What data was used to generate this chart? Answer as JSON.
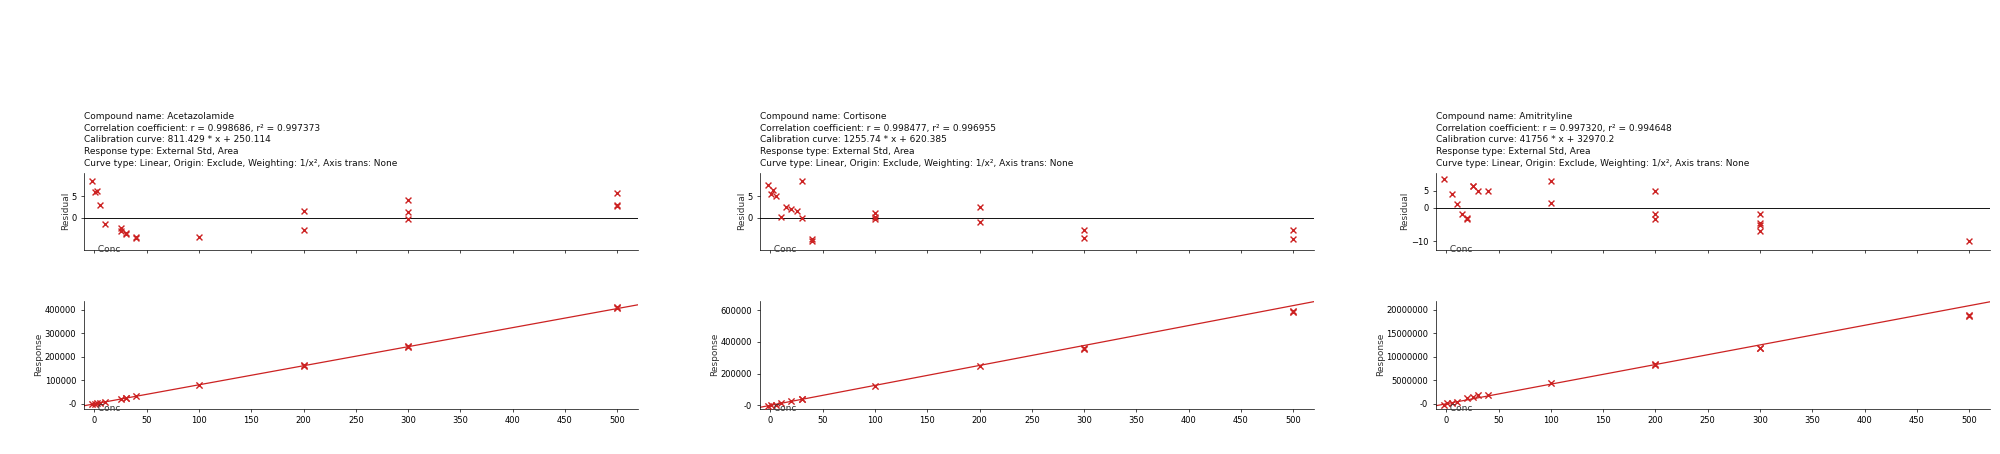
{
  "compounds": [
    {
      "name": "Acetazolamide",
      "r": "0.998686",
      "r2": "0.997373",
      "cal_curve": "811.429 * x + 250.114",
      "slope": 811.429,
      "intercept": 250.114,
      "response_type": "External Std, Area",
      "curve_type": "Linear, Origin: Exclude, Weighting: 1/x², Axis trans: None",
      "residual_points": [
        [
          -2,
          8.5
        ],
        [
          1,
          6.0
        ],
        [
          2,
          6.3
        ],
        [
          5,
          3.0
        ],
        [
          10,
          -1.5
        ],
        [
          25,
          -2.5
        ],
        [
          25,
          -3.2
        ],
        [
          30,
          -3.5
        ],
        [
          30,
          -3.8
        ],
        [
          40,
          -4.8
        ],
        [
          40,
          -4.6
        ],
        [
          100,
          -4.5
        ],
        [
          200,
          -3.0
        ],
        [
          200,
          1.6
        ],
        [
          300,
          4.0
        ],
        [
          300,
          1.2
        ],
        [
          300,
          -0.4
        ],
        [
          500,
          5.7
        ],
        [
          500,
          3.0
        ],
        [
          500,
          2.7
        ]
      ],
      "response_scatter": [
        [
          -2,
          -1000
        ],
        [
          1,
          1000
        ],
        [
          2,
          2000
        ],
        [
          5,
          4000
        ],
        [
          10,
          8000
        ],
        [
          25,
          20000
        ],
        [
          30,
          25000
        ],
        [
          30,
          26000
        ],
        [
          40,
          35000
        ],
        [
          100,
          82000
        ],
        [
          200,
          163000
        ],
        [
          200,
          165000
        ],
        [
          300,
          245000
        ],
        [
          300,
          244000
        ],
        [
          500,
          410000
        ],
        [
          500,
          412000
        ]
      ],
      "xlim": [
        -10,
        520
      ],
      "ylim_resid": [
        -7.5,
        10.5
      ],
      "yticks_resid": [
        0.0,
        5.0
      ],
      "ylim_resp": [
        -20000,
        440000
      ],
      "xticks": [
        0,
        50,
        100,
        150,
        200,
        250,
        300,
        350,
        400,
        450,
        500
      ],
      "yticks_resp": [
        0,
        100000,
        200000,
        300000,
        400000
      ],
      "ytick_resp_labels": [
        "0",
        "100000",
        "200000",
        "300000",
        "400000"
      ]
    },
    {
      "name": "Cortisone",
      "r": "0.998477",
      "r2": "0.996955",
      "cal_curve": "1255.74 * x + 620.385",
      "slope": 1255.74,
      "intercept": 620.385,
      "response_type": "External Std, Area",
      "curve_type": "Linear, Origin: Exclude, Weighting: 1/x², Axis trans: None",
      "residual_points": [
        [
          -2,
          7.5
        ],
        [
          1,
          5.5
        ],
        [
          2,
          6.5
        ],
        [
          5,
          5.0
        ],
        [
          10,
          0.1
        ],
        [
          15,
          2.5
        ],
        [
          20,
          2.0
        ],
        [
          25,
          1.5
        ],
        [
          30,
          8.5
        ],
        [
          30,
          -0.2
        ],
        [
          40,
          -5.0
        ],
        [
          40,
          -5.5
        ],
        [
          100,
          1.0
        ],
        [
          100,
          0.1
        ],
        [
          100,
          -0.3
        ],
        [
          200,
          2.5
        ],
        [
          200,
          -1.0
        ],
        [
          300,
          -3.0
        ],
        [
          300,
          -4.7
        ],
        [
          500,
          -3.0
        ],
        [
          500,
          -5.0
        ]
      ],
      "response_scatter": [
        [
          -2,
          -1000
        ],
        [
          1,
          1000
        ],
        [
          5,
          5000
        ],
        [
          10,
          13000
        ],
        [
          20,
          25000
        ],
        [
          30,
          38000
        ],
        [
          30,
          40000
        ],
        [
          100,
          125000
        ],
        [
          200,
          248000
        ],
        [
          300,
          360000
        ],
        [
          300,
          358000
        ],
        [
          500,
          590000
        ],
        [
          500,
          592000
        ]
      ],
      "xlim": [
        -10,
        520
      ],
      "ylim_resid": [
        -7.5,
        10.5
      ],
      "yticks_resid": [
        0.0,
        5.0
      ],
      "ylim_resp": [
        -20000,
        660000
      ],
      "xticks": [
        0,
        50,
        100,
        150,
        200,
        250,
        300,
        350,
        400,
        450,
        500
      ],
      "yticks_resp": [
        0,
        200000,
        400000,
        600000
      ],
      "ytick_resp_labels": [
        "0",
        "200000",
        "400000",
        "600000"
      ]
    },
    {
      "name": "Amitrityline",
      "r": "0.997320",
      "r2": "0.994648",
      "cal_curve": "41756 * x + 32970.2",
      "slope": 41756,
      "intercept": 32970.2,
      "response_type": "External Std, Area",
      "curve_type": "Linear, Origin: Exclude, Weighting: 1/x², Axis trans: None",
      "residual_points": [
        [
          -2,
          8.5
        ],
        [
          5,
          4.0
        ],
        [
          10,
          1.0
        ],
        [
          15,
          -2.0
        ],
        [
          20,
          -3.0
        ],
        [
          20,
          -3.5
        ],
        [
          25,
          6.5
        ],
        [
          25,
          6.5
        ],
        [
          30,
          5.0
        ],
        [
          40,
          5.0
        ],
        [
          100,
          8.0
        ],
        [
          100,
          1.5
        ],
        [
          200,
          5.0
        ],
        [
          200,
          -2.0
        ],
        [
          200,
          -3.5
        ],
        [
          300,
          -2.0
        ],
        [
          300,
          -4.5
        ],
        [
          300,
          -5.0
        ],
        [
          300,
          -7.0
        ],
        [
          500,
          -10.0
        ]
      ],
      "response_scatter": [
        [
          -2,
          -200000
        ],
        [
          1,
          100000
        ],
        [
          5,
          200000
        ],
        [
          10,
          500000
        ],
        [
          20,
          1200000
        ],
        [
          25,
          1500000
        ],
        [
          30,
          1800000
        ],
        [
          40,
          2000000
        ],
        [
          100,
          4500000
        ],
        [
          200,
          8500000
        ],
        [
          200,
          8200000
        ],
        [
          300,
          12000000
        ],
        [
          300,
          12000000
        ],
        [
          500,
          19000000
        ],
        [
          500,
          18800000
        ]
      ],
      "xlim": [
        -10,
        520
      ],
      "ylim_resid": [
        -12.5,
        10.5
      ],
      "yticks_resid": [
        -10.0,
        0.0,
        5.0
      ],
      "ylim_resp": [
        -1000000,
        22000000
      ],
      "xticks": [
        0,
        50,
        100,
        150,
        200,
        250,
        300,
        350,
        400,
        450,
        500
      ],
      "yticks_resp": [
        0,
        5000000,
        10000000,
        15000000,
        20000000
      ],
      "ytick_resp_labels": [
        "0",
        "5000000",
        "10000000",
        "15000000",
        "20000000"
      ]
    }
  ],
  "bg_color": "#ffffff",
  "marker_color": "#cc2222",
  "line_color": "#cc2222",
  "zero_line_color": "#111111",
  "axis_label_color": "#333333",
  "text_color": "#111111",
  "fontsize_info": 6.5,
  "fontsize_axis": 6.5,
  "fontsize_tick": 6.0
}
